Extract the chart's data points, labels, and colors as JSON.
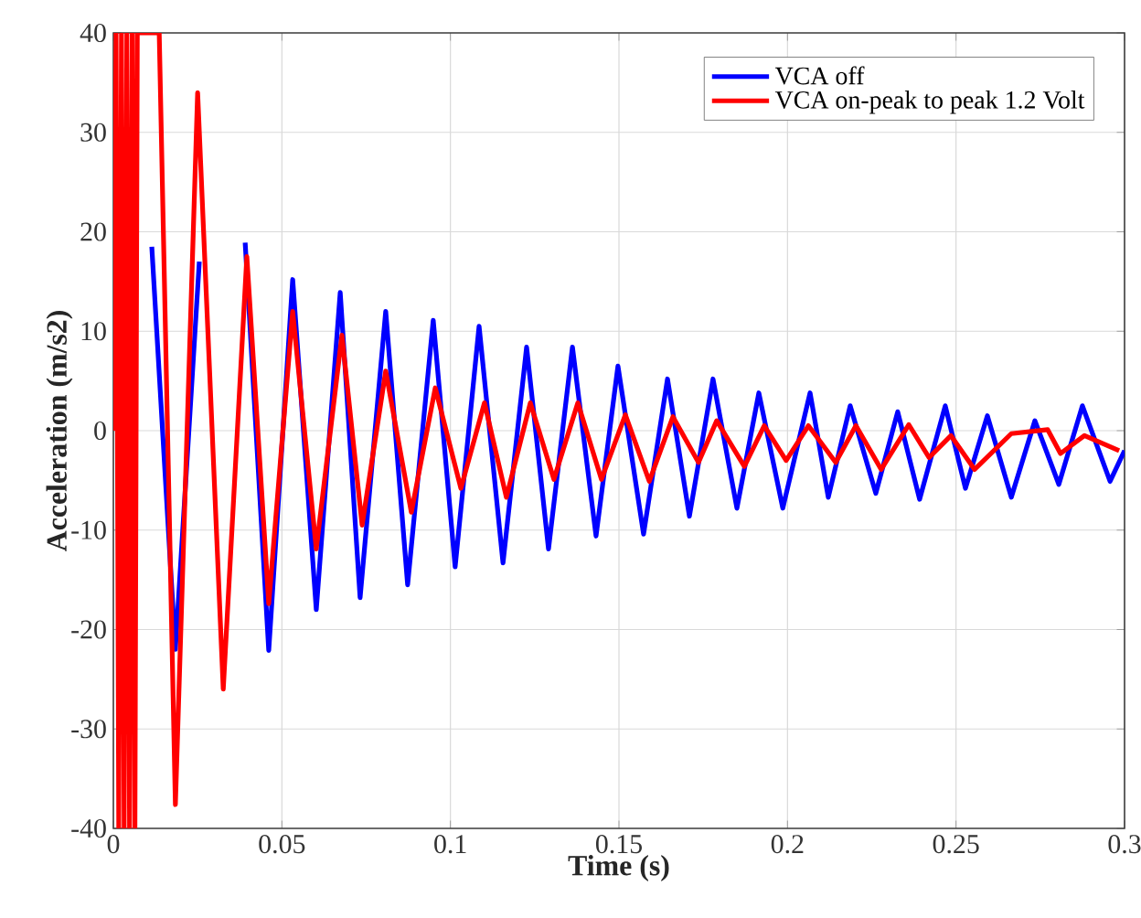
{
  "chart_data": {
    "type": "line",
    "xlabel": "Time (s)",
    "ylabel": "Acceleration (m/s2)",
    "xlim": [
      0,
      0.3
    ],
    "ylim": [
      -40,
      40
    ],
    "xticks": [
      0,
      0.05,
      0.1,
      0.15,
      0.2,
      0.25,
      0.3
    ],
    "yticks": [
      -40,
      -30,
      -20,
      -10,
      0,
      10,
      20,
      30,
      40
    ],
    "grid": true,
    "legend": "top right",
    "marker": "none",
    "line_style": "solid",
    "series": [
      {
        "name": "VCA off",
        "color": "#0000ff",
        "x": [
          0.0114,
          0.0184,
          0.0255,
          0.032,
          0.0391,
          0.0461,
          0.0532,
          0.0602,
          0.0673,
          0.0732,
          0.0808,
          0.0873,
          0.0949,
          0.1014,
          0.1085,
          0.1156,
          0.1226,
          0.1291,
          0.1362,
          0.1432,
          0.1497,
          0.1573,
          0.1644,
          0.1709,
          0.1779,
          0.185,
          0.1915,
          0.1986,
          0.2067,
          0.2121,
          0.2186,
          0.2262,
          0.2327,
          0.2392,
          0.2468,
          0.2528,
          0.2593,
          0.2664,
          0.2734,
          0.2805,
          0.2875,
          0.2957,
          0.3
        ],
        "values": [
          18.5,
          -22,
          17,
          null,
          18.9,
          -22.1,
          15.2,
          -18,
          13.9,
          -16.8,
          12,
          -15.5,
          11.1,
          -13.7,
          10.5,
          -13.3,
          8.4,
          -11.9,
          8.4,
          -10.6,
          6.5,
          -10.4,
          5.2,
          -8.6,
          5.2,
          -7.8,
          3.8,
          -7.8,
          3.8,
          -6.7,
          2.5,
          -6.3,
          1.9,
          -6.9,
          2.5,
          -5.8,
          1.5,
          -6.7,
          1.0,
          -5.4,
          2.5,
          -5.1,
          -2
        ]
      },
      {
        "name": "VCA on-peak to peak 1.2 Volt",
        "color": "#ff0000",
        "x": [
          0,
          0.0008,
          0.0016,
          0.0024,
          0.0032,
          0.004,
          0.0048,
          0.0056,
          0.0064,
          0.0071,
          0.0136,
          0.0184,
          0.025,
          0.0326,
          0.0396,
          0.0461,
          0.0532,
          0.0602,
          0.0678,
          0.0738,
          0.0808,
          0.0884,
          0.0955,
          0.1031,
          0.1101,
          0.1166,
          0.1237,
          0.1307,
          0.1378,
          0.1448,
          0.1519,
          0.159,
          0.166,
          0.1736,
          0.179,
          0.1872,
          0.1931,
          0.1996,
          0.2062,
          0.2143,
          0.2203,
          0.2278,
          0.236,
          0.242,
          0.2485,
          0.2555,
          0.2664,
          0.2772,
          0.281,
          0.2881,
          0.2984
        ],
        "values": [
          0,
          40,
          -40,
          40,
          -40,
          40,
          -40,
          40,
          -40,
          40,
          40,
          -37.6,
          34,
          -26,
          17.5,
          -17.4,
          12,
          -11.9,
          9.6,
          -9.5,
          6,
          -8.2,
          4.3,
          -5.8,
          2.8,
          -6.7,
          2.8,
          -4.9,
          2.8,
          -4.9,
          1.6,
          -5.1,
          1.4,
          -3.2,
          1.0,
          -3.6,
          0.5,
          -3.0,
          0.5,
          -3.2,
          0.5,
          -3.9,
          0.6,
          -2.7,
          -0.5,
          -3.9,
          -0.3,
          0.1,
          -2.3,
          -0.5,
          -2
        ]
      }
    ]
  }
}
